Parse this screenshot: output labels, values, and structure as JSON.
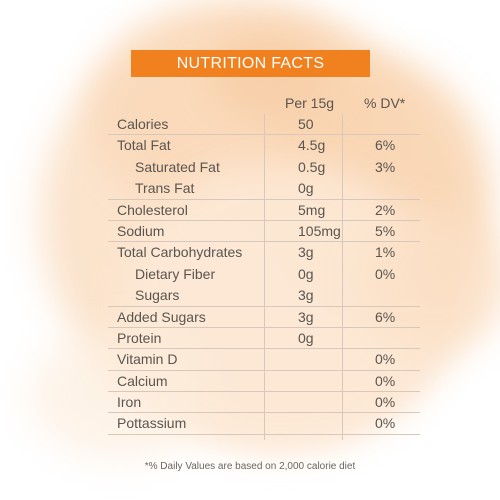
{
  "title": "NUTRITION FACTS",
  "columns": {
    "per": "Per 15g",
    "dv": "% DV*"
  },
  "rows": [
    {
      "name": "Calories",
      "per": "50",
      "dv": "",
      "indent": false
    },
    {
      "name": "Total Fat",
      "per": "4.5g",
      "dv": "6%",
      "indent": false
    },
    {
      "name": "Saturated Fat",
      "per": "0.5g",
      "dv": "3%",
      "indent": true
    },
    {
      "name": "Trans Fat",
      "per": "0g",
      "dv": "",
      "indent": true
    },
    {
      "name": "Cholesterol",
      "per": "5mg",
      "dv": "2%",
      "indent": false
    },
    {
      "name": "Sodium",
      "per": "105mg",
      "dv": "5%",
      "indent": false
    },
    {
      "name": "Total Carbohydrates",
      "per": "3g",
      "dv": "1%",
      "indent": false
    },
    {
      "name": "Dietary Fiber",
      "per": "0g",
      "dv": "0%",
      "indent": true
    },
    {
      "name": "Sugars",
      "per": "3g",
      "dv": "",
      "indent": true
    },
    {
      "name": "Added Sugars",
      "per": "3g",
      "dv": "6%",
      "indent": false
    },
    {
      "name": "Protein",
      "per": "0g",
      "dv": "",
      "indent": false
    },
    {
      "name": "Vitamin D",
      "per": "",
      "dv": "0%",
      "indent": false
    },
    {
      "name": "Calcium",
      "per": "",
      "dv": "0%",
      "indent": false
    },
    {
      "name": "Iron",
      "per": "",
      "dv": "0%",
      "indent": false
    },
    {
      "name": "Pottassium",
      "per": "",
      "dv": "0%",
      "indent": false
    }
  ],
  "footnote": "*% Daily Values are based on 2,000 calorie diet",
  "colors": {
    "title_bar": "#f1801f",
    "background_wash": "#fbe3cc",
    "text": "#5a5550"
  }
}
